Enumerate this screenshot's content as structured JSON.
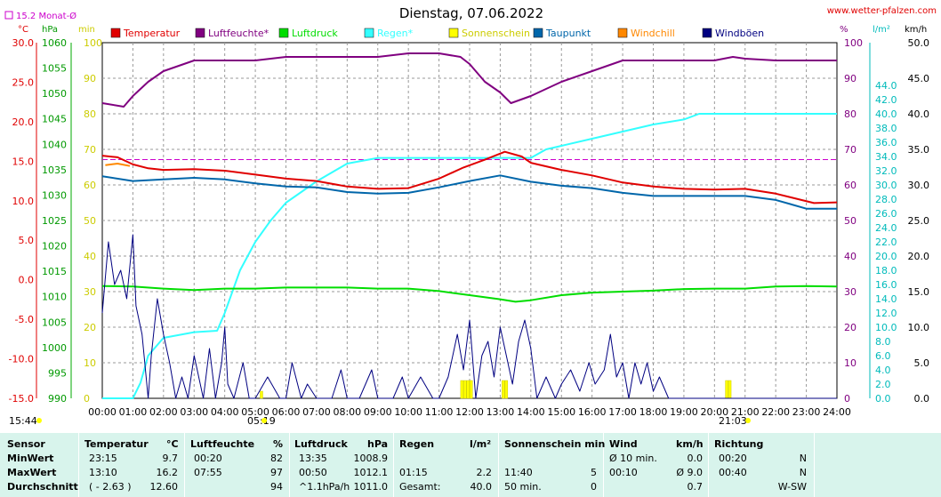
{
  "title": "Dienstag, 07.06.2022",
  "source": "www.wetter-pfalzen.com",
  "legend_monthly": "15.2 Monat-Ø",
  "unit_labels": {
    "temp": "°C",
    "press": "hPa",
    "min": "min",
    "pct": "%",
    "rain": "l/m²",
    "wind": "km/h"
  },
  "sunrise_label": "05:19",
  "sunset_label": "21:03",
  "time_label": "15:44",
  "legend": [
    {
      "name": "Temperatur",
      "color": "#e00000"
    },
    {
      "name": "Luftfeuchte*",
      "color": "#800080"
    },
    {
      "name": "Luftdruck",
      "color": "#00dd00"
    },
    {
      "name": "Regen*",
      "color": "#33ffff"
    },
    {
      "name": "Sonnenschein",
      "color": "#ffff00"
    },
    {
      "name": "Taupunkt",
      "color": "#0066aa"
    },
    {
      "name": "Windchill",
      "color": "#ff8800"
    },
    {
      "name": "Windböen",
      "color": "#000080"
    }
  ],
  "chart_data": {
    "type": "line",
    "title": "Dienstag, 07.06.2022",
    "x_ticks": [
      "00:00",
      "01:00",
      "02:00",
      "03:00",
      "04:00",
      "05:00",
      "06:00",
      "07:00",
      "08:00",
      "09:00",
      "10:00",
      "11:00",
      "12:00",
      "13:00",
      "14:00",
      "15:00",
      "16:00",
      "17:00",
      "18:00",
      "19:00",
      "20:00",
      "21:00",
      "22:00",
      "23:00",
      "24:00"
    ],
    "xlim_hours": [
      0,
      24
    ],
    "axes": {
      "temp": {
        "ticks": [
          "30.0",
          "25.0",
          "20.0",
          "15.0",
          "10.0",
          "5.0",
          "0.0",
          "-5.0",
          "-10.0",
          "-15.0"
        ],
        "range": [
          -15,
          30
        ]
      },
      "pressure": {
        "ticks": [
          "1060",
          "1055",
          "1050",
          "1045",
          "1040",
          "1035",
          "1030",
          "1025",
          "1020",
          "1015",
          "1010",
          "1005",
          "1000",
          "995",
          "990"
        ],
        "range": [
          990,
          1060
        ]
      },
      "minutes": {
        "ticks": [
          "100",
          "90",
          "80",
          "70",
          "60",
          "50",
          "40",
          "30",
          "20",
          "10",
          "0"
        ],
        "range": [
          0,
          100
        ]
      },
      "humidity": {
        "ticks": [
          "100",
          "90",
          "80",
          "70",
          "60",
          "50",
          "40",
          "30",
          "20",
          "10",
          "0"
        ],
        "range": [
          0,
          100
        ]
      },
      "rain": {
        "ticks": [
          "44.0",
          "42.0",
          "40.0",
          "38.0",
          "36.0",
          "34.0",
          "32.0",
          "30.0",
          "28.0",
          "26.0",
          "24.0",
          "22.0",
          "20.0",
          "18.0",
          "16.0",
          "14.0",
          "12.0",
          "10.0",
          "8.0",
          "6.0",
          "4.0",
          "2.0",
          "0.0"
        ],
        "range": [
          0,
          50
        ]
      },
      "wind": {
        "ticks": [
          "50.0",
          "45.0",
          "40.0",
          "35.0",
          "30.0",
          "25.0",
          "20.0",
          "15.0",
          "10.0",
          "5.0",
          "0.0"
        ],
        "range": [
          0,
          50
        ]
      }
    },
    "monthly_avg_temp": 15.2,
    "series": [
      {
        "name": "Temperatur",
        "axis": "temp",
        "color": "#e00000",
        "points": [
          [
            0,
            15.7
          ],
          [
            0.5,
            15.5
          ],
          [
            1,
            14.6
          ],
          [
            1.5,
            14.1
          ],
          [
            2,
            13.9
          ],
          [
            3,
            14.0
          ],
          [
            4,
            13.8
          ],
          [
            5,
            13.3
          ],
          [
            6,
            12.8
          ],
          [
            7,
            12.5
          ],
          [
            8,
            11.8
          ],
          [
            9,
            11.5
          ],
          [
            10,
            11.6
          ],
          [
            11,
            12.8
          ],
          [
            11.8,
            14.2
          ],
          [
            12.5,
            15.2
          ],
          [
            13.15,
            16.2
          ],
          [
            13.7,
            15.6
          ],
          [
            14,
            14.8
          ],
          [
            15,
            13.9
          ],
          [
            16,
            13.2
          ],
          [
            17,
            12.3
          ],
          [
            18,
            11.8
          ],
          [
            19,
            11.5
          ],
          [
            20,
            11.4
          ],
          [
            21,
            11.5
          ],
          [
            22,
            10.9
          ],
          [
            23.25,
            9.7
          ],
          [
            24,
            9.8
          ]
        ]
      },
      {
        "name": "Taupunkt",
        "axis": "temp",
        "color": "#0066aa",
        "points": [
          [
            0,
            13.1
          ],
          [
            1,
            12.5
          ],
          [
            2,
            12.7
          ],
          [
            3,
            12.9
          ],
          [
            4,
            12.7
          ],
          [
            5,
            12.2
          ],
          [
            6,
            11.8
          ],
          [
            7,
            11.7
          ],
          [
            8,
            11.1
          ],
          [
            9,
            10.9
          ],
          [
            10,
            11.0
          ],
          [
            11,
            11.7
          ],
          [
            12,
            12.5
          ],
          [
            13,
            13.2
          ],
          [
            14,
            12.4
          ],
          [
            15,
            11.9
          ],
          [
            16,
            11.6
          ],
          [
            17,
            11.0
          ],
          [
            18,
            10.6
          ],
          [
            19,
            10.6
          ],
          [
            20,
            10.6
          ],
          [
            21,
            10.6
          ],
          [
            22,
            10.1
          ],
          [
            23,
            9.0
          ],
          [
            24,
            9.0
          ]
        ]
      },
      {
        "name": "Windchill",
        "axis": "temp",
        "color": "#ff8800",
        "points": [
          [
            0.1,
            14.5
          ],
          [
            0.5,
            14.7
          ],
          [
            0.9,
            14.4
          ]
        ]
      },
      {
        "name": "Luftfeuchte*",
        "axis": "humidity",
        "color": "#800080",
        "points": [
          [
            0,
            83
          ],
          [
            0.7,
            82
          ],
          [
            1,
            85
          ],
          [
            1.5,
            89
          ],
          [
            2,
            92
          ],
          [
            3,
            95
          ],
          [
            4,
            95
          ],
          [
            5,
            95
          ],
          [
            6,
            96
          ],
          [
            7,
            96
          ],
          [
            8,
            96
          ],
          [
            9,
            96
          ],
          [
            10,
            97
          ],
          [
            11,
            97
          ],
          [
            11.7,
            96
          ],
          [
            12,
            94
          ],
          [
            12.5,
            89
          ],
          [
            13,
            86
          ],
          [
            13.35,
            83
          ],
          [
            14,
            85
          ],
          [
            14.5,
            87
          ],
          [
            15,
            89
          ],
          [
            16,
            92
          ],
          [
            17,
            95
          ],
          [
            18,
            95
          ],
          [
            19,
            95
          ],
          [
            20,
            95
          ],
          [
            20.6,
            96
          ],
          [
            21,
            95.5
          ],
          [
            22,
            95
          ],
          [
            23,
            95
          ],
          [
            24,
            95
          ]
        ]
      },
      {
        "name": "Luftdruck",
        "axis": "pressure",
        "color": "#00dd00",
        "points": [
          [
            0,
            1012.1
          ],
          [
            1,
            1012.0
          ],
          [
            2,
            1011.6
          ],
          [
            3,
            1011.3
          ],
          [
            4,
            1011.6
          ],
          [
            5,
            1011.6
          ],
          [
            6,
            1011.8
          ],
          [
            7,
            1011.8
          ],
          [
            8,
            1011.8
          ],
          [
            9,
            1011.6
          ],
          [
            10,
            1011.6
          ],
          [
            11,
            1011.1
          ],
          [
            12,
            1010.3
          ],
          [
            13,
            1009.5
          ],
          [
            13.5,
            1009.0
          ],
          [
            14,
            1009.3
          ],
          [
            15,
            1010.3
          ],
          [
            16,
            1010.8
          ],
          [
            17,
            1011.0
          ],
          [
            18,
            1011.2
          ],
          [
            19,
            1011.5
          ],
          [
            20,
            1011.6
          ],
          [
            21,
            1011.6
          ],
          [
            22,
            1012.0
          ],
          [
            23,
            1012.1
          ],
          [
            24,
            1012.0
          ]
        ]
      },
      {
        "name": "Regen*",
        "axis": "rain",
        "color": "#33ffff",
        "points": [
          [
            0,
            0
          ],
          [
            1,
            0
          ],
          [
            1.25,
            2.2
          ],
          [
            1.5,
            6
          ],
          [
            2,
            8.5
          ],
          [
            3,
            9.3
          ],
          [
            3.75,
            9.5
          ],
          [
            4,
            12
          ],
          [
            4.5,
            18
          ],
          [
            5,
            22
          ],
          [
            5.5,
            25
          ],
          [
            6,
            27.5
          ],
          [
            7,
            30.5
          ],
          [
            8,
            33
          ],
          [
            9,
            33.8
          ],
          [
            10,
            33.8
          ],
          [
            11,
            33.8
          ],
          [
            12,
            33.8
          ],
          [
            13,
            33.8
          ],
          [
            14,
            33.8
          ],
          [
            14.5,
            35
          ],
          [
            15,
            35.5
          ],
          [
            16,
            36.5
          ],
          [
            17,
            37.5
          ],
          [
            18,
            38.5
          ],
          [
            19,
            39.2
          ],
          [
            19.5,
            40.0
          ],
          [
            20,
            40.0
          ],
          [
            21,
            40.0
          ],
          [
            22,
            40.0
          ],
          [
            23,
            40.0
          ],
          [
            24,
            40.0
          ]
        ]
      },
      {
        "name": "Windböen",
        "axis": "wind",
        "color": "#000080",
        "points": [
          [
            0,
            12
          ],
          [
            0.2,
            22
          ],
          [
            0.4,
            16
          ],
          [
            0.6,
            18
          ],
          [
            0.8,
            14
          ],
          [
            1,
            23
          ],
          [
            1.1,
            13
          ],
          [
            1.3,
            9
          ],
          [
            1.5,
            0
          ],
          [
            1.6,
            6
          ],
          [
            1.7,
            10
          ],
          [
            1.8,
            14
          ],
          [
            2,
            9
          ],
          [
            2.2,
            5
          ],
          [
            2.4,
            0
          ],
          [
            2.6,
            3
          ],
          [
            2.8,
            0
          ],
          [
            3,
            6
          ],
          [
            3.3,
            0
          ],
          [
            3.5,
            7
          ],
          [
            3.7,
            0
          ],
          [
            3.9,
            5
          ],
          [
            4,
            10
          ],
          [
            4.1,
            2
          ],
          [
            4.3,
            0
          ],
          [
            4.6,
            5
          ],
          [
            4.8,
            0
          ],
          [
            5,
            0
          ],
          [
            5.4,
            3
          ],
          [
            5.8,
            0
          ],
          [
            6,
            0
          ],
          [
            6.2,
            5
          ],
          [
            6.5,
            0
          ],
          [
            6.7,
            2
          ],
          [
            7,
            0
          ],
          [
            7.5,
            0
          ],
          [
            7.8,
            4
          ],
          [
            8,
            0
          ],
          [
            8.4,
            0
          ],
          [
            8.8,
            4
          ],
          [
            9,
            0
          ],
          [
            9.5,
            0
          ],
          [
            9.8,
            3
          ],
          [
            10,
            0
          ],
          [
            10.4,
            3
          ],
          [
            10.8,
            0
          ],
          [
            11,
            0
          ],
          [
            11.3,
            3
          ],
          [
            11.6,
            9
          ],
          [
            11.8,
            4
          ],
          [
            12,
            11
          ],
          [
            12.2,
            0
          ],
          [
            12.4,
            6
          ],
          [
            12.6,
            8
          ],
          [
            12.8,
            3
          ],
          [
            13,
            10
          ],
          [
            13.2,
            6
          ],
          [
            13.4,
            2
          ],
          [
            13.6,
            8
          ],
          [
            13.8,
            11
          ],
          [
            14,
            7
          ],
          [
            14.2,
            0
          ],
          [
            14.5,
            3
          ],
          [
            14.8,
            0
          ],
          [
            15,
            2
          ],
          [
            15.3,
            4
          ],
          [
            15.6,
            1
          ],
          [
            15.9,
            5
          ],
          [
            16.1,
            2
          ],
          [
            16.4,
            4
          ],
          [
            16.6,
            9
          ],
          [
            16.8,
            3
          ],
          [
            17,
            5
          ],
          [
            17.2,
            0
          ],
          [
            17.4,
            5
          ],
          [
            17.6,
            2
          ],
          [
            17.8,
            5
          ],
          [
            18,
            1
          ],
          [
            18.2,
            3
          ],
          [
            18.5,
            0
          ],
          [
            19,
            0
          ],
          [
            24,
            0
          ]
        ]
      }
    ],
    "sunshine_bars": [
      [
        5.2,
        2
      ],
      [
        11.75,
        5
      ],
      [
        11.85,
        5
      ],
      [
        11.95,
        5
      ],
      [
        12.05,
        5
      ],
      [
        13.1,
        5
      ],
      [
        13.2,
        5
      ],
      [
        20.4,
        5
      ],
      [
        20.5,
        5
      ]
    ]
  },
  "table": {
    "headers": [
      "Sensor",
      "Temperatur",
      "°C",
      "Luftfeuchte",
      "%",
      "Luftdruck",
      "hPa",
      "Regen",
      "l/m²",
      "Sonnenschein min",
      "Wind",
      "km/h",
      "Richtung"
    ],
    "rows": [
      {
        "label": "MinWert",
        "temp_time": "23:15",
        "temp_val": "9.7",
        "hum_time": "00:20",
        "hum_val": "82",
        "press_time": "13:35",
        "press_val": "1008.9",
        "rain_time": "",
        "rain_val": "",
        "sun_time": "",
        "sun_val": "",
        "wind_lbl": "Ø 10 min.",
        "wind_val": "0.0",
        "dir_time": "00:20",
        "dir_val": "N"
      },
      {
        "label": "MaxWert",
        "temp_time": "13:10",
        "temp_val": "16.2",
        "hum_time": "07:55",
        "hum_val": "97",
        "press_time": "00:50",
        "press_val": "1012.1",
        "rain_time": "01:15",
        "rain_val": "2.2",
        "sun_time": "11:40",
        "sun_val": "5",
        "wind_lbl": "00:10",
        "wind_val": "Ø 9.0",
        "dir_time": "00:40",
        "dir_val": "N"
      },
      {
        "label": "Durchschnitt",
        "temp_time": "( - 2.63 )",
        "temp_val": "12.60",
        "hum_time": "",
        "hum_val": "94",
        "press_time": "^1.1hPa/h",
        "press_val": "1011.0",
        "rain_time": "Gesamt:",
        "rain_val": "40.0",
        "sun_time": "50 min.",
        "sun_val": "0",
        "wind_lbl": "",
        "wind_val": "0.7",
        "dir_time": "",
        "dir_val": "W-SW"
      }
    ]
  }
}
